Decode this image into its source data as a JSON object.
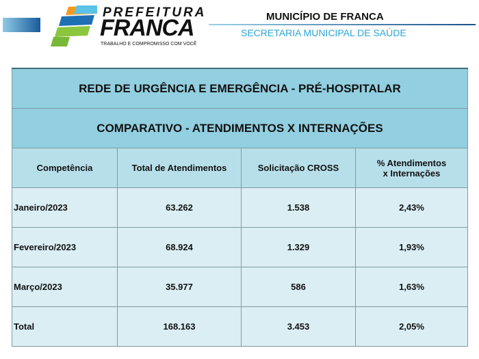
{
  "header": {
    "logo_line1": "PREFEITURA",
    "logo_line2": "FRANCA",
    "logo_tagline": "TRABALHO E COMPROMISSO COM VOCÊ",
    "municipality": "MUNICÍPIO DE FRANCA",
    "secretariat": "SECRETARIA MUNICIPAL DE SAÚDE"
  },
  "table": {
    "title": "REDE DE URGÊNCIA E EMERGÊNCIA - PRÉ-HOSPITALAR",
    "subtitle": "COMPARATIVO - ATENDIMENTOS X INTERNAÇÕES",
    "columns": [
      "Competência",
      "Total de Atendimentos",
      "Solicitação CROSS",
      "% Atendimentos x Internações"
    ],
    "rows": [
      [
        "Janeiro/2023",
        "63.262",
        "1.538",
        "2,43%"
      ],
      [
        "Fevereiro/2023",
        "68.924",
        "1.329",
        "1,93%"
      ],
      [
        "Março/2023",
        "35.977",
        "586",
        "1,63%"
      ],
      [
        "Total",
        "168.163",
        "3.453",
        "2,05%"
      ]
    ]
  }
}
